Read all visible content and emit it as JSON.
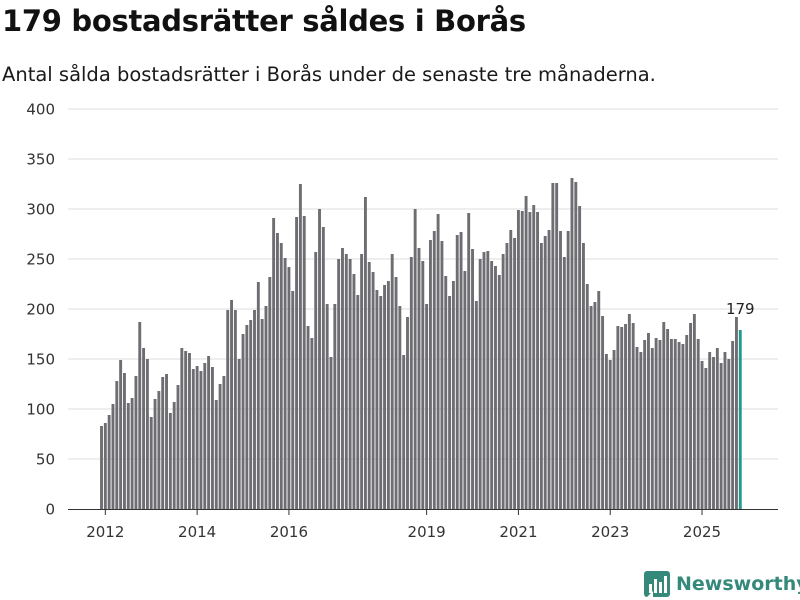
{
  "chart_data": {
    "type": "bar",
    "title": "179 bostadsrätter såldes i Borås",
    "subtitle": "Antal sålda bostadsrätter i Borås under de senaste tre månaderna.",
    "xlabel": "",
    "ylabel": "",
    "ylim": [
      0,
      400
    ],
    "yticks": [
      "0",
      "50",
      "100",
      "150",
      "200",
      "250",
      "300",
      "350",
      "400"
    ],
    "xticks": [
      "2012",
      "2014",
      "2016",
      "2019",
      "2021",
      "2023",
      "2025"
    ],
    "grid": true,
    "bar_color": "#6e6d72",
    "highlight_color": "#1f9a8c",
    "highlight_label": "179",
    "series": [
      {
        "name": "Sålda bostadsrätter",
        "start": "2011-12",
        "values": [
          83,
          86,
          94,
          105,
          128,
          149,
          136,
          106,
          111,
          133,
          187,
          161,
          150,
          92,
          110,
          118,
          132,
          135,
          96,
          107,
          124,
          161,
          158,
          156,
          140,
          143,
          138,
          146,
          153,
          142,
          109,
          125,
          133,
          199,
          209,
          199,
          150,
          175,
          184,
          189,
          199,
          227,
          190,
          203,
          232,
          291,
          276,
          266,
          251,
          242,
          218,
          292,
          325,
          293,
          183,
          171,
          257,
          300,
          282,
          205,
          152,
          205,
          250,
          261,
          255,
          250,
          235,
          214,
          255,
          312,
          247,
          237,
          219,
          213,
          224,
          228,
          255,
          232,
          203,
          154,
          192,
          252,
          300,
          261,
          248,
          205,
          269,
          278,
          295,
          268,
          233,
          213,
          228,
          274,
          277,
          238,
          296,
          260,
          208,
          250,
          257,
          258,
          248,
          243,
          234,
          255,
          266,
          279,
          271,
          299,
          298,
          313,
          297,
          304,
          297,
          266,
          273,
          279,
          326,
          326,
          278,
          252,
          278,
          331,
          327,
          303,
          266,
          225,
          203,
          207,
          218,
          193,
          155,
          149,
          159,
          183,
          182,
          185,
          195,
          186,
          162,
          157,
          169,
          176,
          161,
          171,
          169,
          187,
          180,
          170,
          170,
          167,
          165,
          174,
          186,
          195,
          170,
          148,
          141,
          157,
          152,
          161,
          146,
          157,
          150,
          168,
          192,
          179
        ]
      }
    ]
  },
  "brand": {
    "name": "Newsworthy",
    "color": "#35897b",
    "logo_icon": "bar-chart-icon"
  }
}
